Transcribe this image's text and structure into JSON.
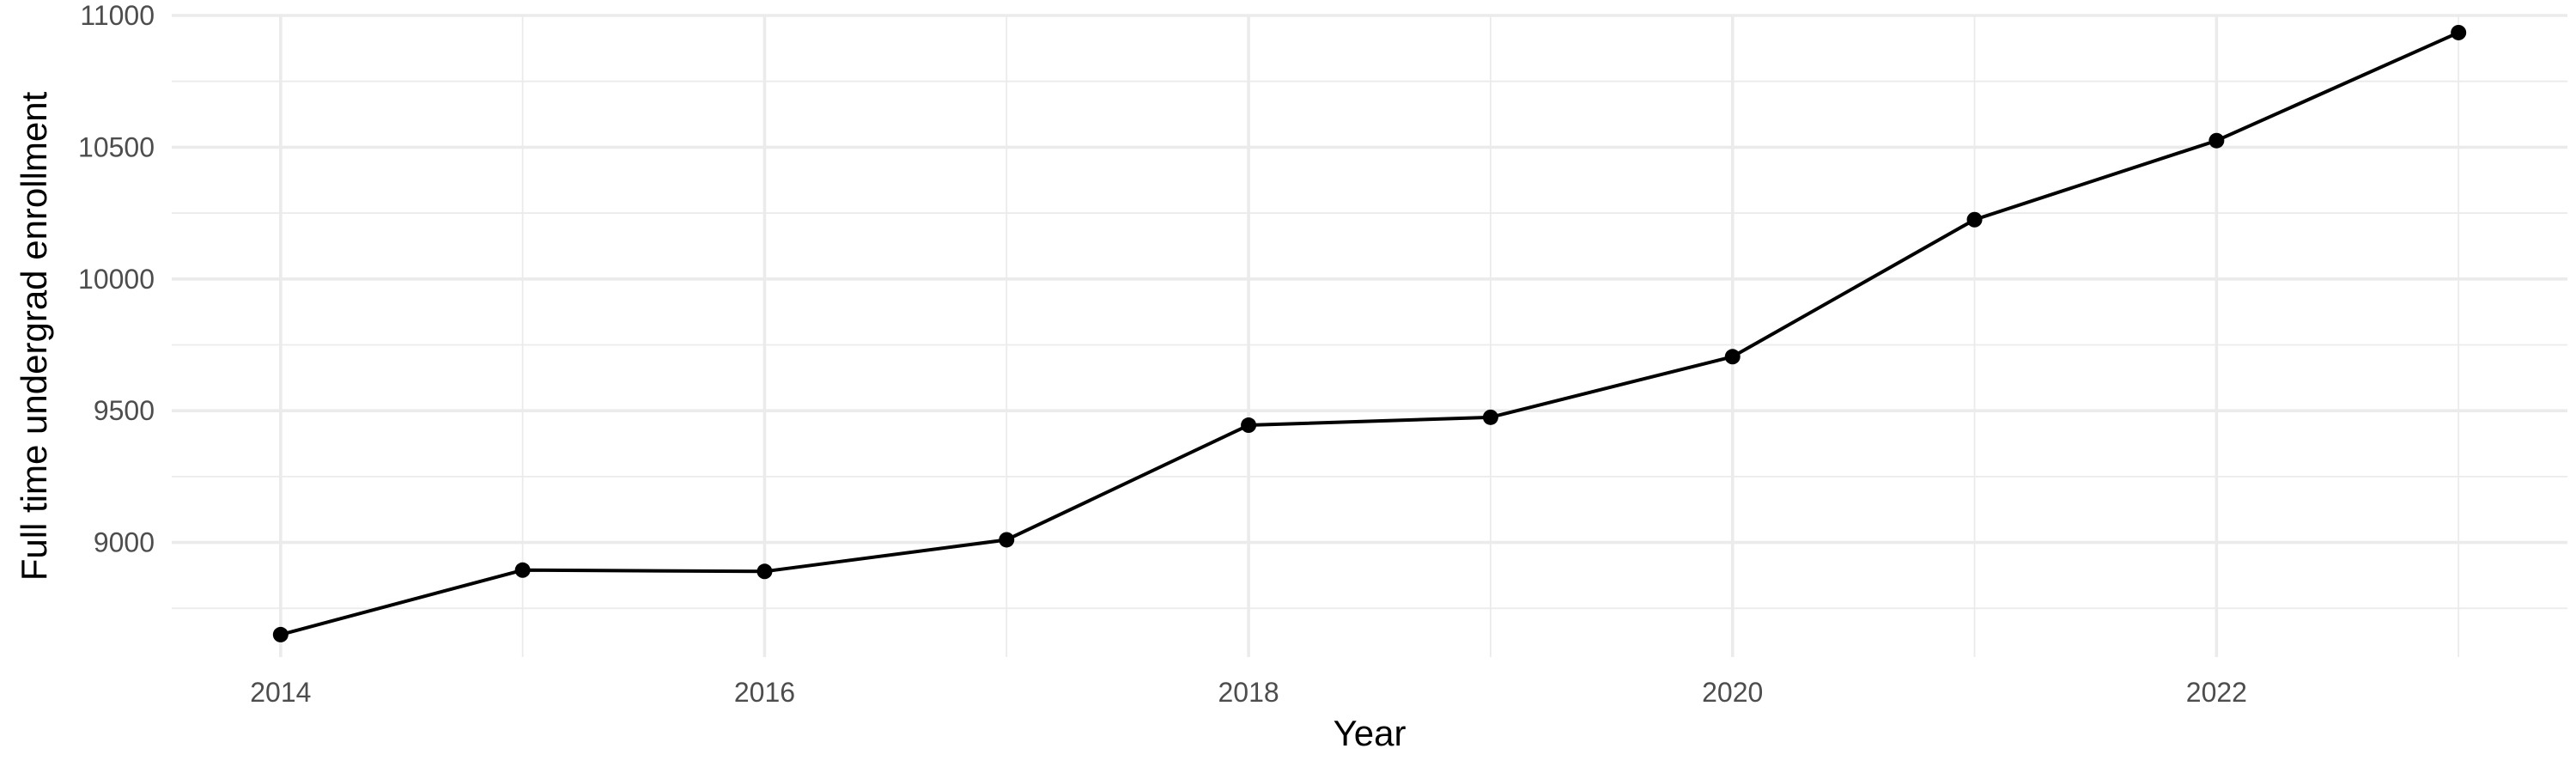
{
  "chart_data": {
    "type": "line",
    "title": "",
    "xlabel": "Year",
    "ylabel": "Full time undergrad enrollment",
    "x": [
      2014,
      2015,
      2016,
      2017,
      2018,
      2019,
      2020,
      2021,
      2022,
      2023
    ],
    "series": [
      {
        "name": "",
        "values": [
          8650,
          8895,
          8890,
          9010,
          9445,
          9475,
          9705,
          10225,
          10525,
          10935
        ],
        "color": "#000000"
      }
    ],
    "xlim": [
      2013.55,
      2023.45
    ],
    "ylim": [
      8565,
      11000
    ],
    "x_major_ticks": [
      2014,
      2016,
      2018,
      2020,
      2022
    ],
    "x_minor_ticks": [
      2015,
      2017,
      2019,
      2021,
      2023
    ],
    "y_major_ticks": [
      9000,
      9500,
      10000,
      10500,
      11000
    ],
    "y_minor_ticks": [
      8750,
      9250,
      9750,
      10250,
      10750
    ],
    "x_tick_labels": [
      "2014",
      "2016",
      "2018",
      "2020",
      "2022"
    ],
    "y_tick_labels": [
      "9000",
      "9500",
      "10000",
      "10500",
      "11000"
    ],
    "grid": true,
    "legend": "none"
  }
}
